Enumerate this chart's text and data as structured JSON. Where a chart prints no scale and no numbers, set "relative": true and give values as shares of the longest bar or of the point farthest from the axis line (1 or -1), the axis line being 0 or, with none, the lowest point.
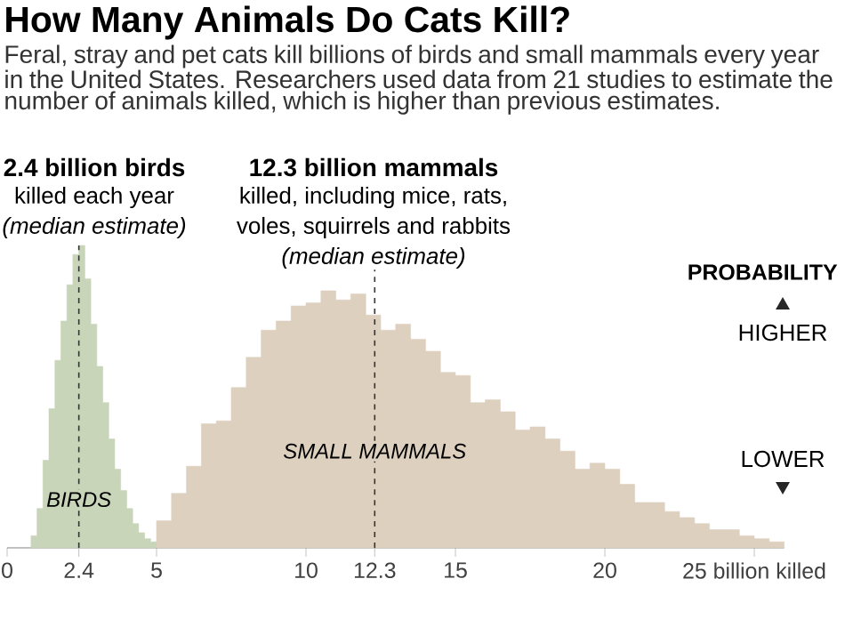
{
  "chart_data": {
    "type": "area",
    "title": "How Many Animals Do Cats Kill?",
    "subtitle": "Feral, stray and pet cats kill billions of birds and small mammals every year in the United States. Researchers used data from 21 studies to estimate the number of animals killed, which is higher than previous estimates.",
    "relative": true,
    "ylabel": "PROBABILITY",
    "xlim": [
      0,
      26
    ],
    "xticks": [
      0,
      2.4,
      5,
      10,
      12.3,
      15,
      20,
      {
        "value": 25,
        "label": "25 billion killed"
      }
    ],
    "series": [
      {
        "name": "BIRDS",
        "color": "#c8d5b9",
        "x": [
          0.8,
          1.0,
          1.0,
          1.2,
          1.2,
          1.4,
          1.4,
          1.6,
          1.6,
          1.8,
          1.8,
          2.0,
          2.0,
          2.2,
          2.2,
          2.4,
          2.4,
          2.6,
          2.6,
          2.8,
          2.8,
          3.0,
          3.0,
          3.2,
          3.2,
          3.4,
          3.4,
          3.6,
          3.6,
          3.8,
          3.8,
          4.0,
          4.0,
          4.2,
          4.2,
          4.4,
          4.4,
          4.6,
          4.6,
          4.8,
          4.8,
          5.0
        ],
        "values": [
          0.04,
          0.04,
          0.13,
          0.13,
          0.29,
          0.29,
          0.46,
          0.46,
          0.62,
          0.62,
          0.75,
          0.75,
          0.87,
          0.87,
          0.97,
          0.97,
          1.0,
          1.0,
          0.89,
          0.89,
          0.74,
          0.74,
          0.6,
          0.6,
          0.48,
          0.48,
          0.36,
          0.36,
          0.26,
          0.26,
          0.19,
          0.19,
          0.13,
          0.13,
          0.08,
          0.08,
          0.05,
          0.05,
          0.03,
          0.03,
          0.02,
          0.02
        ]
      },
      {
        "name": "SMALL MAMMALS",
        "color": "#ddd0bf",
        "x": [
          5.0,
          5.5,
          5.5,
          6.0,
          6.0,
          6.5,
          6.5,
          7.0,
          7.0,
          7.5,
          7.5,
          8.0,
          8.0,
          8.5,
          8.5,
          9.0,
          9.0,
          9.5,
          9.5,
          10.0,
          10.0,
          10.5,
          10.5,
          11.0,
          11.0,
          11.5,
          11.5,
          12.0,
          12.0,
          12.5,
          12.5,
          13.0,
          13.0,
          13.5,
          13.5,
          14.0,
          14.0,
          14.5,
          14.5,
          15.0,
          15.0,
          15.5,
          15.5,
          16.0,
          16.0,
          16.5,
          16.5,
          17.0,
          17.0,
          17.5,
          17.5,
          18.0,
          18.0,
          18.5,
          18.5,
          19.0,
          19.0,
          19.5,
          19.5,
          20.0,
          20.0,
          20.5,
          20.5,
          21.0,
          21.0,
          21.5,
          21.5,
          22.0,
          22.0,
          22.5,
          22.5,
          23.0,
          23.0,
          23.5,
          23.5,
          24.0,
          24.0,
          24.5,
          24.5,
          25.0,
          25.0,
          25.5,
          25.5,
          26.0
        ],
        "values": [
          0.09,
          0.09,
          0.18,
          0.18,
          0.27,
          0.27,
          0.41,
          0.41,
          0.42,
          0.42,
          0.53,
          0.53,
          0.63,
          0.63,
          0.72,
          0.72,
          0.75,
          0.75,
          0.8,
          0.8,
          0.81,
          0.81,
          0.85,
          0.85,
          0.82,
          0.82,
          0.84,
          0.84,
          0.77,
          0.77,
          0.72,
          0.72,
          0.74,
          0.74,
          0.69,
          0.69,
          0.65,
          0.65,
          0.58,
          0.58,
          0.57,
          0.57,
          0.48,
          0.48,
          0.49,
          0.49,
          0.45,
          0.45,
          0.39,
          0.39,
          0.4,
          0.4,
          0.36,
          0.36,
          0.32,
          0.32,
          0.26,
          0.26,
          0.28,
          0.28,
          0.26,
          0.26,
          0.21,
          0.21,
          0.15,
          0.15,
          0.15,
          0.15,
          0.12,
          0.12,
          0.1,
          0.1,
          0.08,
          0.08,
          0.06,
          0.06,
          0.06,
          0.06,
          0.04,
          0.04,
          0.03,
          0.03,
          0.02,
          0.02
        ]
      }
    ],
    "ref_lines": [
      {
        "axis": "x",
        "value": 2.4,
        "line_style": "dashed"
      },
      {
        "axis": "x",
        "value": 12.3,
        "line_style": "dashed"
      }
    ],
    "annotations": [
      "2.4 billion birds",
      "killed each year",
      "(median estimate)",
      "12.3 billion mammals",
      "killed, including mice, rats,",
      "voles, squirrels and rabbits",
      "(median estimate)",
      "HIGHER",
      "LOWER"
    ]
  }
}
